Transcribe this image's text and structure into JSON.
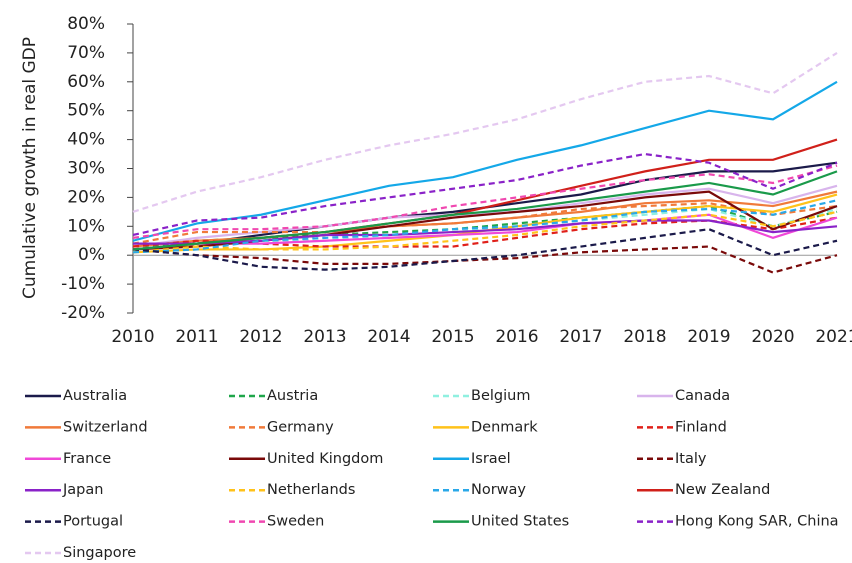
{
  "chart_data": {
    "type": "line",
    "y_label": "Cumulative growth in real GDP",
    "categories": [
      "2010",
      "2011",
      "2012",
      "2013",
      "2014",
      "2015",
      "2016",
      "2017",
      "2018",
      "2019",
      "2020",
      "2021"
    ],
    "ylim": [
      -20,
      80
    ],
    "yticks": [
      {
        "value": -20,
        "label": "-20%"
      },
      {
        "value": -10,
        "label": "-10%"
      },
      {
        "value": 0,
        "label": "0%"
      },
      {
        "value": 10,
        "label": "10%"
      },
      {
        "value": 20,
        "label": "20%"
      },
      {
        "value": 30,
        "label": "30%"
      },
      {
        "value": 40,
        "label": "40%"
      },
      {
        "value": 50,
        "label": "50%"
      },
      {
        "value": 60,
        "label": "60%"
      },
      {
        "value": 70,
        "label": "70%"
      },
      {
        "value": 80,
        "label": "80%"
      }
    ],
    "series": [
      {
        "name": "Australia",
        "color": "#1b1a4a",
        "dash": false,
        "values": [
          2,
          4,
          7,
          10,
          13,
          15,
          18,
          21,
          26,
          29,
          29,
          32
        ]
      },
      {
        "name": "Austria",
        "color": "#1fa64a",
        "dash": true,
        "values": [
          2,
          5,
          6,
          7,
          8,
          9,
          11,
          13,
          15,
          17,
          10,
          15
        ]
      },
      {
        "name": "Belgium",
        "color": "#8ff0e0",
        "dash": true,
        "values": [
          2,
          4,
          5,
          5,
          7,
          8,
          10,
          12,
          14,
          16,
          10,
          16
        ]
      },
      {
        "name": "Canada",
        "color": "#d8b4ec",
        "dash": false,
        "values": [
          3,
          6,
          8,
          10,
          13,
          14,
          15,
          18,
          21,
          23,
          18,
          24
        ]
      },
      {
        "name": "Switzerland",
        "color": "#f07a3a",
        "dash": false,
        "values": [
          3,
          5,
          6,
          8,
          10,
          11,
          13,
          15,
          18,
          19,
          17,
          22
        ]
      },
      {
        "name": "Germany",
        "color": "#f07a3a",
        "dash": true,
        "values": [
          4,
          8,
          8,
          8,
          10,
          11,
          13,
          16,
          17,
          18,
          14,
          17
        ]
      },
      {
        "name": "Denmark",
        "color": "#ffc21a",
        "dash": false,
        "values": [
          1,
          2,
          2,
          3,
          5,
          7,
          10,
          13,
          15,
          17,
          15,
          21
        ]
      },
      {
        "name": "Finland",
        "color": "#e0201a",
        "dash": true,
        "values": [
          3,
          5,
          4,
          3,
          3,
          3,
          6,
          9,
          11,
          12,
          9,
          13
        ]
      },
      {
        "name": "France",
        "color": "#f048d8",
        "dash": false,
        "values": [
          2,
          4,
          4,
          5,
          6,
          7,
          8,
          11,
          12,
          14,
          6,
          13
        ]
      },
      {
        "name": "United Kingdom",
        "color": "#7a0a0a",
        "dash": false,
        "values": [
          2,
          3,
          5,
          7,
          10,
          13,
          15,
          17,
          20,
          22,
          9,
          17
        ]
      },
      {
        "name": "Israel",
        "color": "#14a8e8",
        "dash": false,
        "values": [
          5,
          11,
          14,
          19,
          24,
          27,
          33,
          38,
          44,
          50,
          47,
          60
        ]
      },
      {
        "name": "Italy",
        "color": "#7a0a0a",
        "dash": true,
        "values": [
          2,
          0,
          -1,
          -3,
          -3,
          -2,
          -1,
          1,
          2,
          3,
          -6,
          0
        ]
      },
      {
        "name": "Japan",
        "color": "#8a22c8",
        "dash": false,
        "values": [
          4,
          4,
          5,
          7,
          7,
          8,
          9,
          11,
          12,
          12,
          8,
          10
        ]
      },
      {
        "name": "Netherlands",
        "color": "#ffc21a",
        "dash": true,
        "values": [
          1,
          3,
          2,
          2,
          3,
          5,
          7,
          10,
          12,
          14,
          10,
          15
        ]
      },
      {
        "name": "Norway",
        "color": "#2aa8e8",
        "dash": true,
        "values": [
          1,
          2,
          5,
          6,
          7,
          9,
          10,
          12,
          15,
          16,
          14,
          19
        ]
      },
      {
        "name": "New Zealand",
        "color": "#d0201a",
        "dash": false,
        "values": [
          2,
          4,
          6,
          8,
          11,
          14,
          19,
          24,
          29,
          33,
          33,
          40
        ]
      },
      {
        "name": "Portugal",
        "color": "#1b1a4a",
        "dash": true,
        "values": [
          2,
          0,
          -4,
          -5,
          -4,
          -2,
          0,
          3,
          6,
          9,
          0,
          5
        ]
      },
      {
        "name": "Sweden",
        "color": "#f048b0",
        "dash": true,
        "values": [
          6,
          9,
          9,
          10,
          13,
          17,
          20,
          23,
          26,
          28,
          25,
          31
        ]
      },
      {
        "name": "United States",
        "color": "#1a9a4a",
        "dash": false,
        "values": [
          2,
          4,
          6,
          8,
          11,
          14,
          16,
          19,
          22,
          25,
          21,
          29
        ]
      },
      {
        "name": "Hong Kong SAR, China",
        "color": "#8a22c8",
        "dash": true,
        "values": [
          7,
          12,
          13,
          17,
          20,
          23,
          26,
          31,
          35,
          32,
          23,
          32
        ]
      },
      {
        "name": "Singapore",
        "color": "#e4c8f0",
        "dash": true,
        "values": [
          15,
          22,
          27,
          33,
          38,
          42,
          47,
          54,
          60,
          62,
          56,
          70
        ]
      }
    ]
  }
}
